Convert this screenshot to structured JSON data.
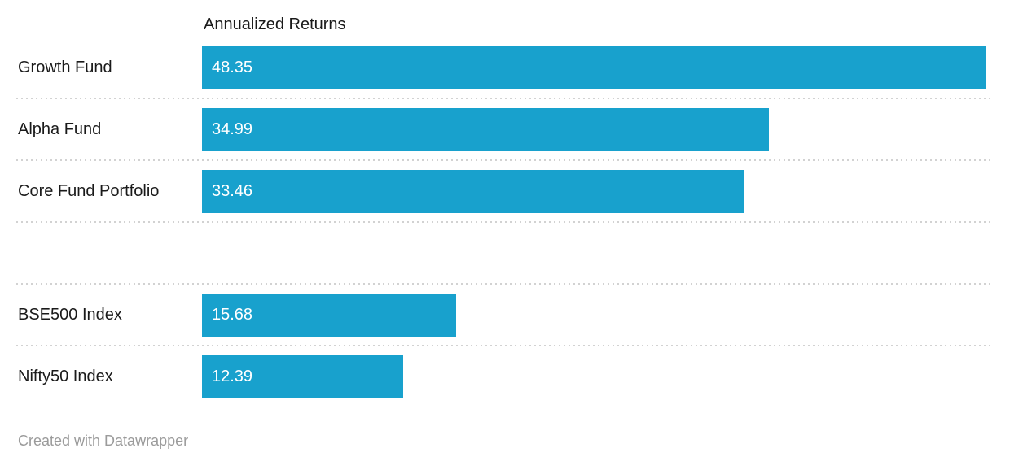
{
  "chart_data": {
    "type": "bar",
    "orientation": "horizontal",
    "column_header": "Annualized Returns",
    "categories": [
      "Growth Fund",
      "Alpha Fund",
      "Core Fund Portfolio",
      "",
      "BSE500 Index",
      "Nifty50 Index"
    ],
    "values": [
      48.35,
      34.99,
      33.46,
      null,
      15.68,
      12.39
    ],
    "value_labels": [
      "48.35",
      "34.99",
      "33.46",
      "",
      "15.68",
      "12.39"
    ],
    "xlim": [
      0,
      48.35
    ],
    "grid": "dotted-row-dividers",
    "legend_position": "none",
    "bar_color": "#18a1cd"
  },
  "footer": {
    "credit": "Created with Datawrapper"
  },
  "colors": {
    "background": "#ffffff",
    "bar": "#18a1cd",
    "label_text": "#1a1a1a",
    "bar_value_text": "#ffffff",
    "divider": "#d2d2d2",
    "credit_text": "#9b9b9b"
  }
}
